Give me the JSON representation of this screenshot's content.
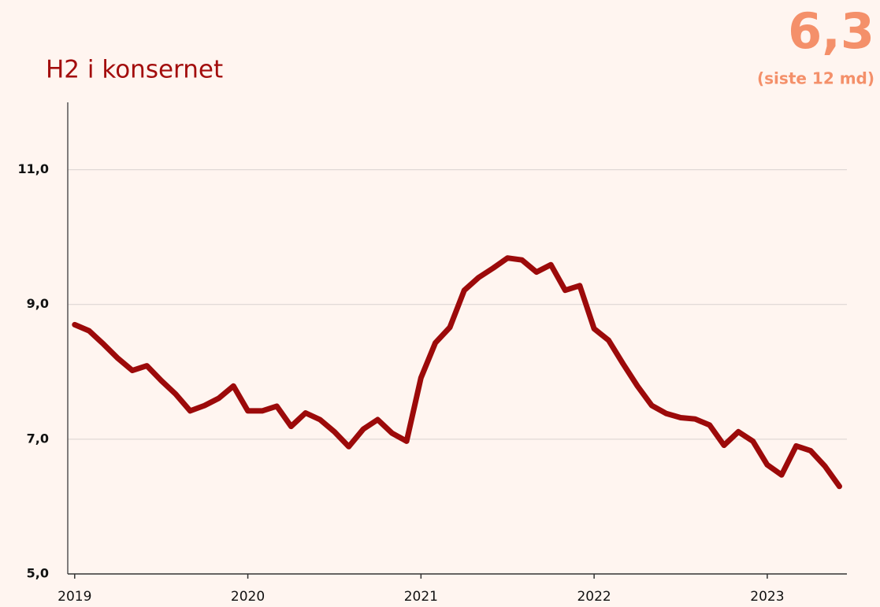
{
  "chart_data": {
    "type": "line",
    "title": "H2 i konsernet",
    "headline": "6,3",
    "subtitle": "(siste 12 md)",
    "x": [
      2019,
      2019.083,
      2019.167,
      2019.25,
      2019.333,
      2019.417,
      2019.5,
      2019.583,
      2019.667,
      2019.75,
      2019.833,
      2019.917,
      2020,
      2020.083,
      2020.167,
      2020.25,
      2020.333,
      2020.417,
      2020.5,
      2020.583,
      2020.667,
      2020.75,
      2020.833,
      2020.917,
      2021,
      2021.083,
      2021.167,
      2021.25,
      2021.333,
      2021.417,
      2021.5,
      2021.583,
      2021.667,
      2021.75,
      2021.833,
      2021.917,
      2022,
      2022.083,
      2022.167,
      2022.25,
      2022.333,
      2022.417,
      2022.5,
      2022.583,
      2022.667,
      2022.75,
      2022.833,
      2022.917,
      2023,
      2023.083,
      2023.167,
      2023.25,
      2023.333,
      2023.417
    ],
    "series": [
      {
        "name": "H2 i konsernet",
        "color": "#9c0a0a",
        "values": [
          8.7,
          8.61,
          8.41,
          8.2,
          8.02,
          8.09,
          7.87,
          7.67,
          7.42,
          7.5,
          7.61,
          7.79,
          7.42,
          7.42,
          7.49,
          7.19,
          7.39,
          7.29,
          7.11,
          6.89,
          7.15,
          7.29,
          7.09,
          6.97,
          7.91,
          8.43,
          8.66,
          9.21,
          9.4,
          9.54,
          9.69,
          9.66,
          9.48,
          9.59,
          9.21,
          9.28,
          8.64,
          8.47,
          8.12,
          7.79,
          7.5,
          7.38,
          7.32,
          7.3,
          7.21,
          6.91,
          7.11,
          6.97,
          6.62,
          6.47,
          6.9,
          6.83,
          6.6,
          6.3
        ]
      }
    ],
    "xlim": [
      2018.96,
      2023.46
    ],
    "xticks": [
      2019,
      2020,
      2021,
      2022,
      2023
    ],
    "ylim": [
      5,
      12
    ],
    "yticks": [
      {
        "value": 5,
        "label": "5,0"
      },
      {
        "value": 7,
        "label": "7,0"
      },
      {
        "value": 9,
        "label": "9,0"
      },
      {
        "value": 11,
        "label": "11,0"
      }
    ],
    "grid": true
  }
}
